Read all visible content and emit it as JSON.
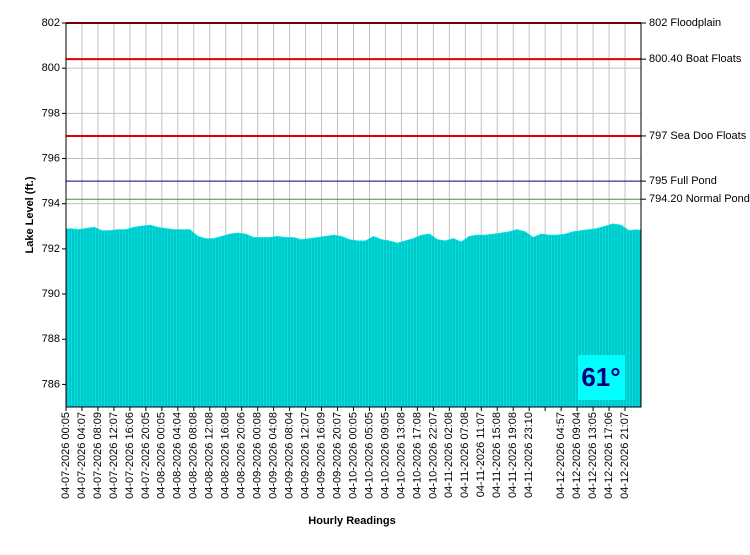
{
  "chart_data": {
    "type": "area",
    "y_label": "Lake Level (ft.)",
    "x_label": "Hourly Readings",
    "categories": [
      "04-07-2026 00:05",
      null,
      "04-07-2026 04:07",
      null,
      "04-07-2026 08:09",
      null,
      "04-07-2026 12:07",
      null,
      "04-07-2026 16:06",
      null,
      "04-07-2026 20:05",
      null,
      "04-08-2026 00:05",
      null,
      "04-08-2026 04:04",
      null,
      "04-08-2026 08:08",
      null,
      "04-08-2026 12:08",
      null,
      "04-08-2026 16:08",
      null,
      "04-08-2026 20:06",
      null,
      "04-09-2026 00:08",
      null,
      "04-09-2026 04:08",
      null,
      "04-09-2026 08:04",
      null,
      "04-09-2026 12:07",
      null,
      "04-09-2026 16:09",
      null,
      "04-09-2026 20:07",
      null,
      "04-10-2026 00:05",
      null,
      "04-10-2026 05:05",
      null,
      "04-10-2026 09:05",
      null,
      "04-10-2026 13:08",
      null,
      "04-10-2026 17:08",
      null,
      "04-10-2026 22:07",
      null,
      "04-11-2026 02:08",
      null,
      "04-11-2026 07:08",
      null,
      "04-11-2026 11:07",
      null,
      "04-11-2026 15:08",
      null,
      "04-11-2026 19:08",
      null,
      "04-11-2026 23:10",
      null,
      null,
      null,
      "04-12-2026 04:57",
      null,
      "04-12-2026 09:04",
      null,
      "04-12-2026 13:05",
      null,
      "04-12-2026 17:06",
      null,
      "04-12-2026 21:07",
      null
    ],
    "values": [
      792.9,
      792.85,
      792.9,
      792.95,
      792.8,
      792.8,
      792.85,
      792.85,
      792.95,
      793.0,
      793.05,
      792.95,
      792.9,
      792.85,
      792.85,
      792.85,
      792.55,
      792.45,
      792.45,
      792.55,
      792.65,
      792.7,
      792.65,
      792.5,
      792.5,
      792.5,
      792.55,
      792.5,
      792.5,
      792.4,
      792.45,
      792.5,
      792.55,
      792.6,
      792.55,
      792.4,
      792.35,
      792.35,
      792.55,
      792.4,
      792.35,
      792.25,
      792.35,
      792.45,
      792.6,
      792.65,
      792.4,
      792.35,
      792.45,
      792.3,
      792.55,
      792.6,
      792.6,
      792.65,
      792.7,
      792.75,
      792.85,
      792.75,
      792.5,
      792.65,
      792.6,
      792.6,
      792.65,
      792.75,
      792.8,
      792.85,
      792.9,
      793.0,
      793.1,
      793.05,
      792.8,
      792.85
    ],
    "color": "#00e0e0",
    "ylim": [
      785,
      802
    ],
    "yticks": [
      786,
      788,
      790,
      792,
      794,
      796,
      798,
      800,
      802
    ],
    "grid": true,
    "reference_lines": [
      {
        "value": 802,
        "label": "802 Floodplain",
        "color": "#e00000"
      },
      {
        "value": 800.4,
        "label": "800.40 Boat Floats",
        "color": "#e00000"
      },
      {
        "value": 797,
        "label": "797 Sea Doo Floats",
        "color": "#e00000"
      },
      {
        "value": 795,
        "label": "795 Full Pond",
        "color": "#000080"
      },
      {
        "value": 794.2,
        "label": "794.20 Normal Pond",
        "color": "#3a9a3a"
      }
    ],
    "badge": "61°"
  }
}
